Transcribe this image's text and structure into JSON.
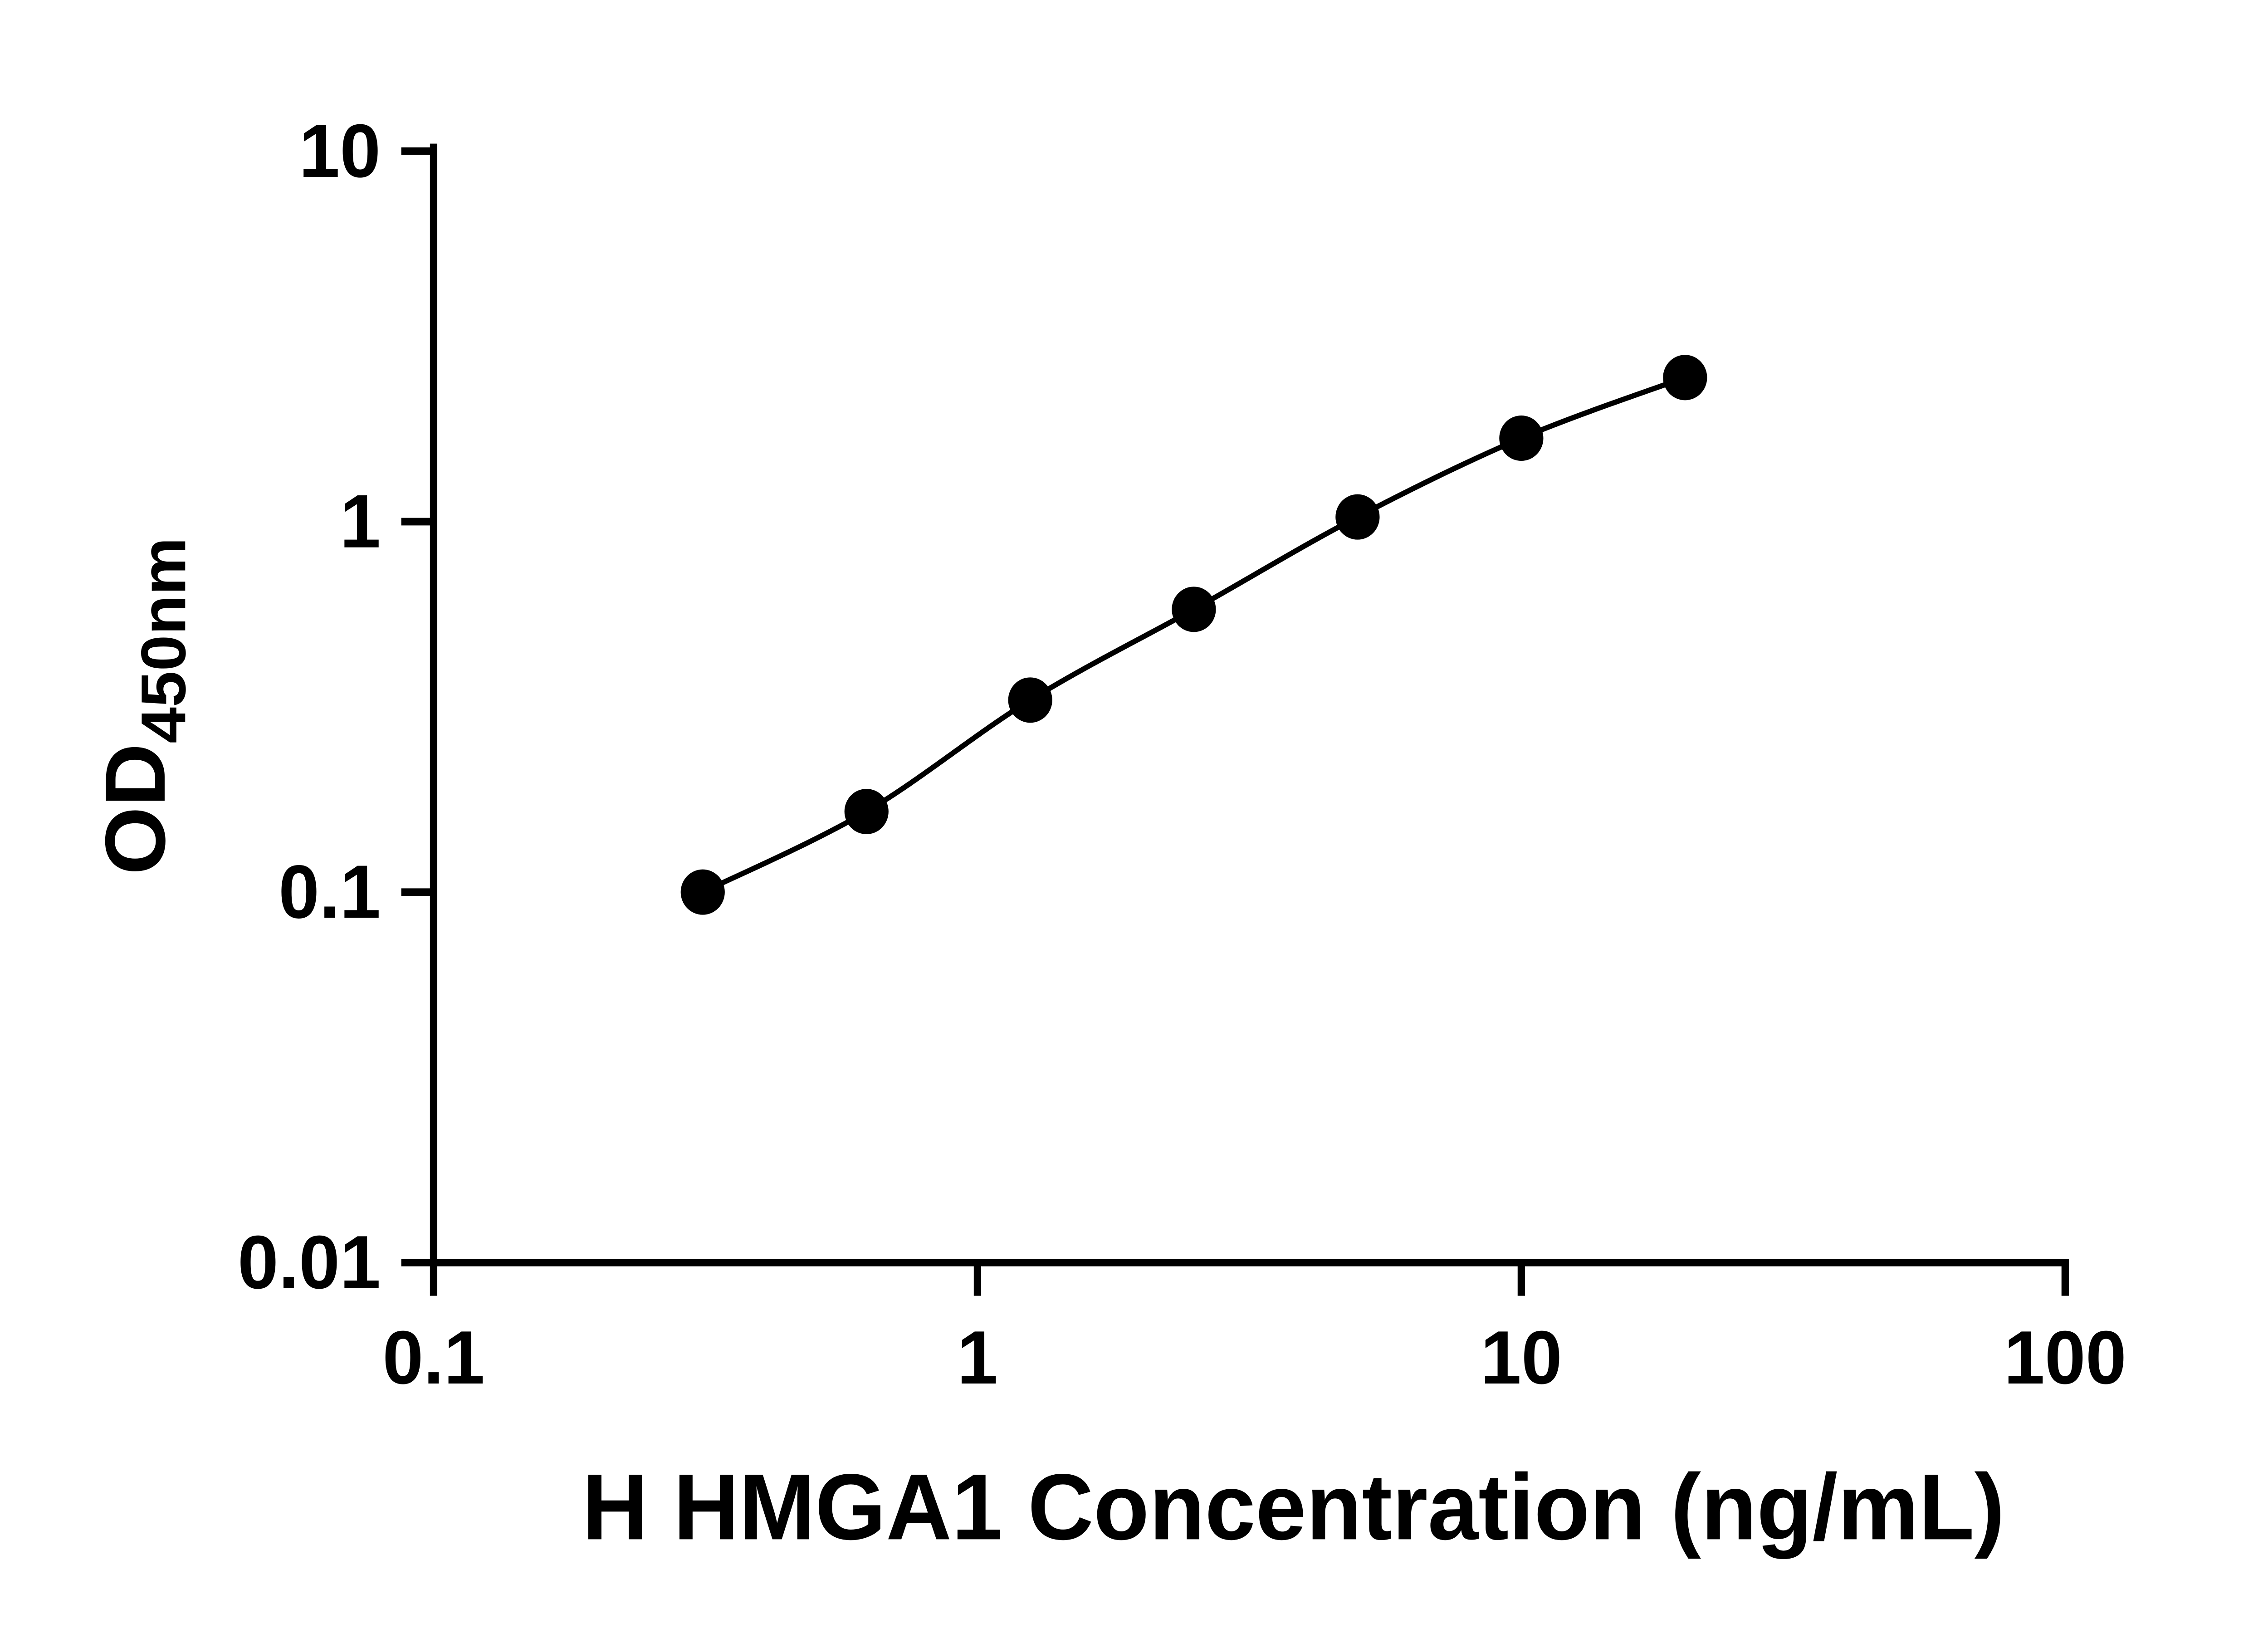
{
  "page": {
    "background": "#ffffff"
  },
  "chart_data": {
    "type": "scatter",
    "title": "",
    "xlabel": "H HMGA1 Concentration (ng/mL)",
    "ylabel": "OD450nm",
    "ylabel_main": "OD",
    "ylabel_sub": "450nm",
    "x_scale": "log10",
    "y_scale": "log10",
    "xlim": [
      0.1,
      100
    ],
    "ylim": [
      0.01,
      10
    ],
    "grid": false,
    "legend": false,
    "x_ticks": [
      {
        "value": 0.1,
        "label": "0.1"
      },
      {
        "value": 1,
        "label": "1"
      },
      {
        "value": 10,
        "label": "10"
      },
      {
        "value": 100,
        "label": "100"
      }
    ],
    "y_ticks": [
      {
        "value": 0.01,
        "label": "0.01"
      },
      {
        "value": 0.1,
        "label": "0.1"
      },
      {
        "value": 1,
        "label": "1"
      },
      {
        "value": 10,
        "label": "10"
      }
    ],
    "series": [
      {
        "marker": "filled-circle",
        "curve": "smooth",
        "color": "#000000",
        "points": [
          {
            "x": 0.3125,
            "y": 0.1
          },
          {
            "x": 0.625,
            "y": 0.165
          },
          {
            "x": 1.25,
            "y": 0.33
          },
          {
            "x": 2.5,
            "y": 0.58
          },
          {
            "x": 5,
            "y": 1.03
          },
          {
            "x": 10,
            "y": 1.68
          },
          {
            "x": 20,
            "y": 2.45
          }
        ]
      }
    ],
    "colors": {
      "axis": "#000000",
      "line": "#000000",
      "marker": "#000000",
      "background": "#ffffff"
    }
  }
}
